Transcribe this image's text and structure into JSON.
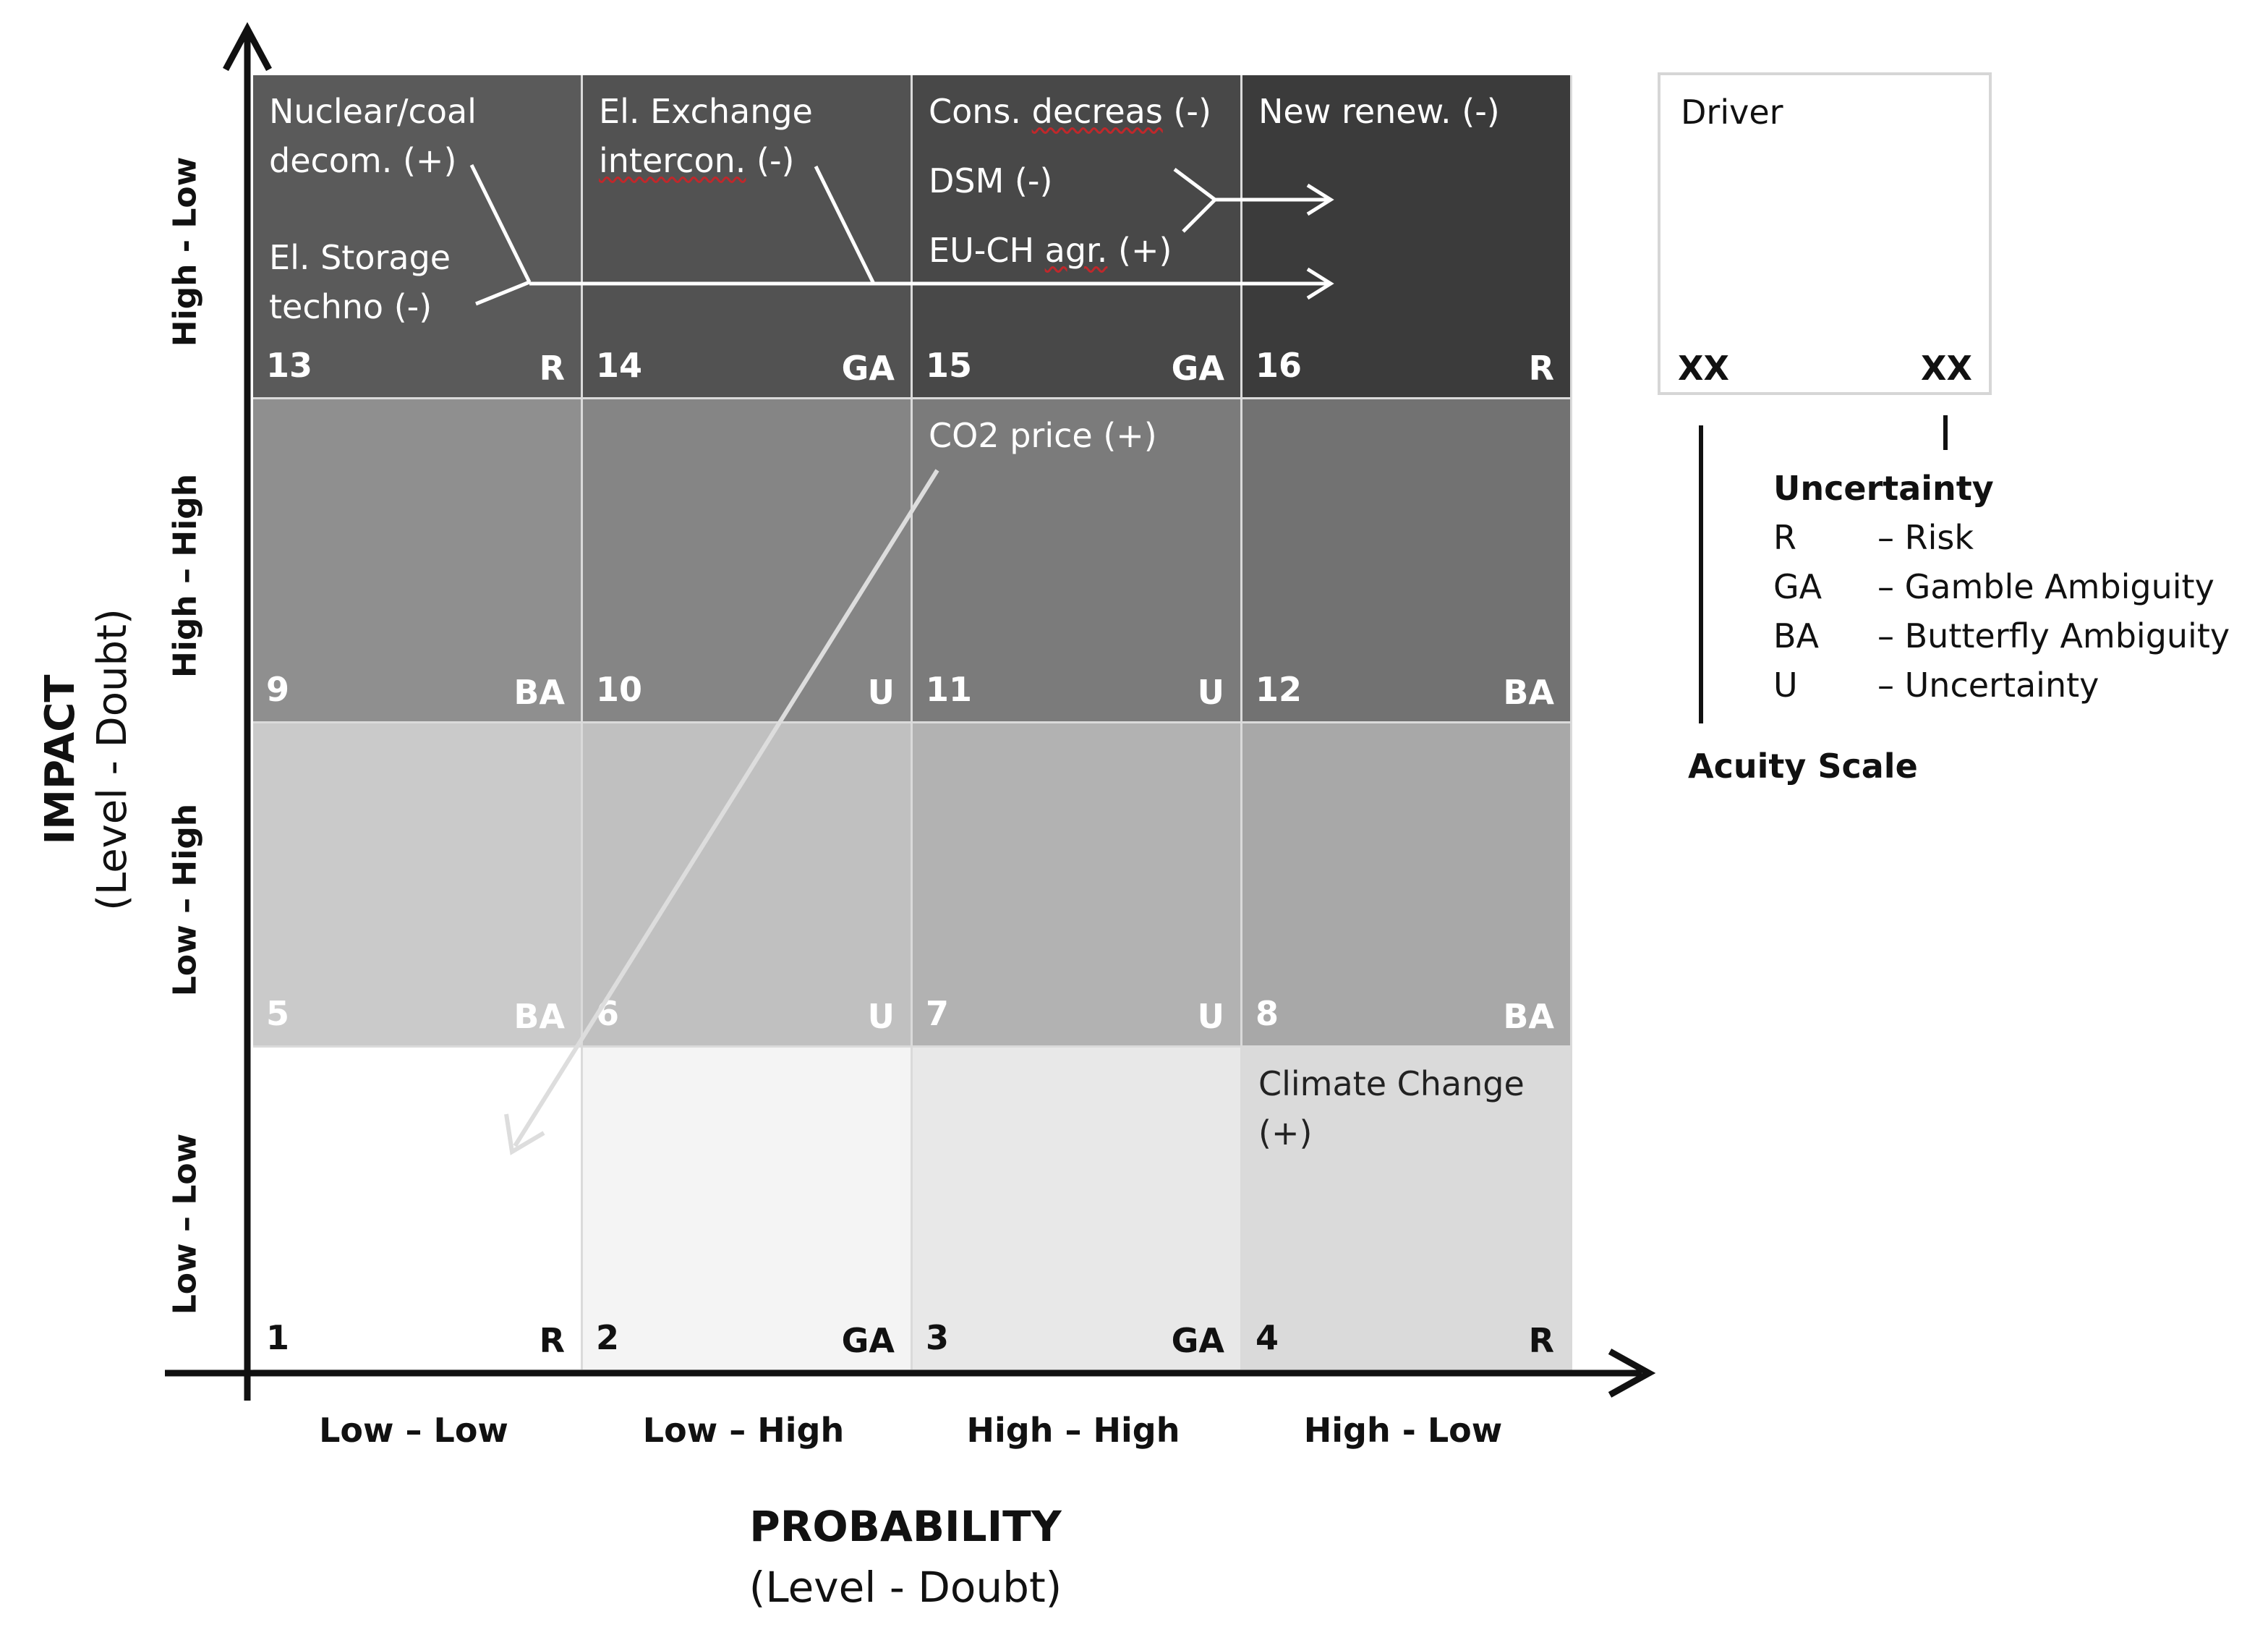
{
  "axes": {
    "y_title": "IMPACT",
    "y_subtitle": "(Level - Doubt)",
    "x_title": "PROBABILITY",
    "x_subtitle": "(Level - Doubt)",
    "y_categories": [
      "Low – Low",
      "Low – High",
      "High – High",
      "High - Low"
    ],
    "x_categories": [
      "Low – Low",
      "Low – High",
      "High – High",
      "High - Low"
    ]
  },
  "cells": [
    {
      "num": "1",
      "code": "R",
      "row": 0,
      "col": 0,
      "fill": "#ffffff"
    },
    {
      "num": "2",
      "code": "GA",
      "row": 0,
      "col": 1,
      "fill": "#f4f4f4"
    },
    {
      "num": "3",
      "code": "GA",
      "row": 0,
      "col": 2,
      "fill": "#e8e8e8"
    },
    {
      "num": "4",
      "code": "R",
      "row": 0,
      "col": 3,
      "fill": "#dadada"
    },
    {
      "num": "5",
      "code": "BA",
      "row": 1,
      "col": 0,
      "fill": "#cacaca"
    },
    {
      "num": "6",
      "code": "U",
      "row": 1,
      "col": 1,
      "fill": "#c0c0c0"
    },
    {
      "num": "7",
      "code": "U",
      "row": 1,
      "col": 2,
      "fill": "#b2b2b2"
    },
    {
      "num": "8",
      "code": "BA",
      "row": 1,
      "col": 3,
      "fill": "#a8a8a8"
    },
    {
      "num": "9",
      "code": "BA",
      "row": 2,
      "col": 0,
      "fill": "#8f8f8f"
    },
    {
      "num": "10",
      "code": "U",
      "row": 2,
      "col": 1,
      "fill": "#858585"
    },
    {
      "num": "11",
      "code": "U",
      "row": 2,
      "col": 2,
      "fill": "#7b7b7b"
    },
    {
      "num": "12",
      "code": "BA",
      "row": 2,
      "col": 3,
      "fill": "#727272"
    },
    {
      "num": "13",
      "code": "R",
      "row": 3,
      "col": 0,
      "fill": "#5a5a5a"
    },
    {
      "num": "14",
      "code": "GA",
      "row": 3,
      "col": 1,
      "fill": "#525252"
    },
    {
      "num": "15",
      "code": "GA",
      "row": 3,
      "col": 2,
      "fill": "#484848"
    },
    {
      "num": "16",
      "code": "R",
      "row": 3,
      "col": 3,
      "fill": "#3b3b3b"
    }
  ],
  "drivers": {
    "nuclear_1": "Nuclear/coal",
    "nuclear_2": "decom. (+)",
    "storage_1": "El. Storage",
    "storage_2": "techno (-)",
    "exchange_1": "El. Exchange",
    "exchange_2a": "intercon.",
    "exchange_2b": " (-)",
    "cons_a": "Cons. ",
    "cons_b": "decreas",
    "cons_c": " (-)",
    "dsm": "DSM (-)",
    "euch_a": "EU-CH ",
    "euch_b": "agr.",
    "euch_c": " (+)",
    "renew": "New renew. (-)",
    "co2": "CO2 price (+)",
    "climate_1": "Climate Change",
    "climate_2": "(+)"
  },
  "legend": {
    "box_title": "Driver",
    "box_left": "XX",
    "box_right": "XX",
    "uncertainty_title": "Uncertainty",
    "items": [
      {
        "code": "R",
        "label": "– Risk"
      },
      {
        "code": "GA",
        "label": "– Gamble Ambiguity"
      },
      {
        "code": "BA",
        "label": "– Butterfly Ambiguity"
      },
      {
        "code": "U",
        "label": "– Uncertainty"
      }
    ],
    "acuity_title": "Acuity Scale"
  },
  "colors": {
    "axis": "#111111",
    "arrow_light": "#ffffff",
    "arrow_co2": "#dddddd",
    "spellcheck": "#c0282b"
  }
}
